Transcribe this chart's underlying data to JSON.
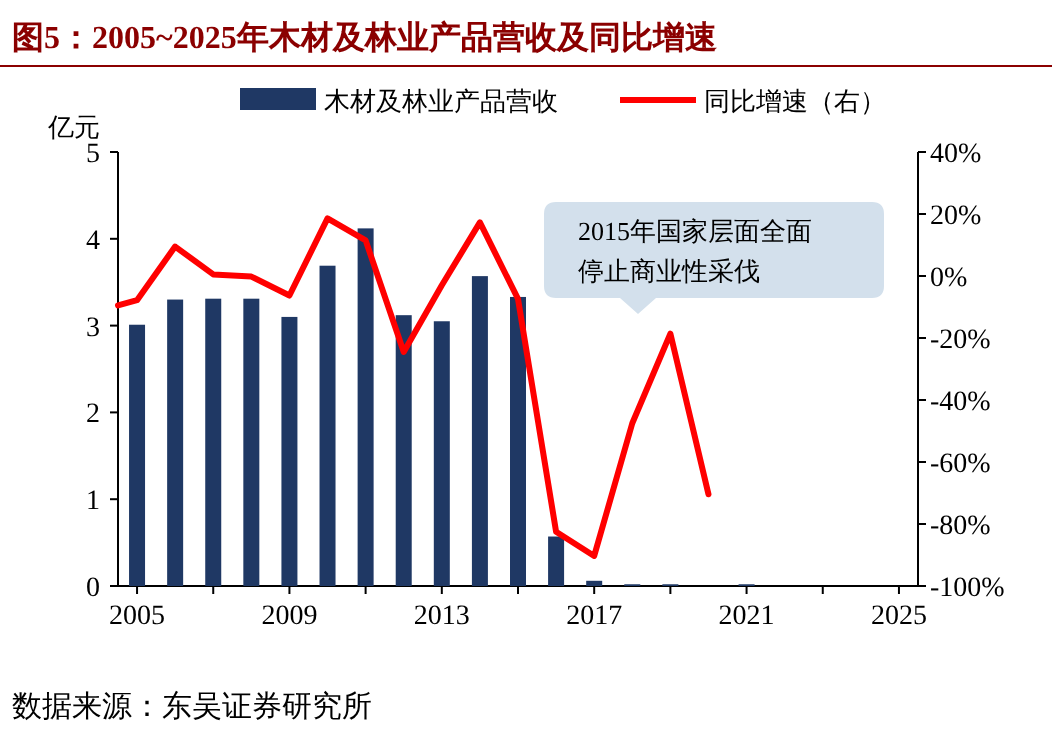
{
  "chart_data": {
    "type": "bar",
    "title": "图5：2005~2025年木材及林业产品营收及同比增速",
    "ylabel": "亿元",
    "x": [
      2005,
      2006,
      2007,
      2008,
      2009,
      2010,
      2011,
      2012,
      2013,
      2014,
      2015,
      2016,
      2017,
      2018,
      2019,
      2021
    ],
    "series": [
      {
        "name": "木材及林业产品营收",
        "color": "#1f3864",
        "values": [
          3.01,
          3.3,
          3.31,
          3.31,
          3.1,
          3.69,
          4.12,
          3.12,
          3.05,
          3.57,
          3.33,
          0.57,
          0.06,
          0.02,
          0.02,
          0.02
        ]
      },
      {
        "name": "同比增速（右）",
        "type": "line",
        "axis": "y2",
        "color": "#ff0000",
        "x": [
          2004.5,
          2005,
          2006,
          2007,
          2008,
          2009,
          2010,
          2011,
          2012,
          2013,
          2014,
          2015,
          2016,
          2017,
          2018,
          2019,
          2020
        ],
        "values": [
          -9.5,
          -7.8,
          9.5,
          0.5,
          -0.2,
          -6.3,
          18.6,
          11.5,
          -24.5,
          -3,
          17.3,
          -7.4,
          -82.5,
          -90.3,
          -47.5,
          -18.6,
          -70.4
        ]
      }
    ],
    "xlim": [
      2004.5,
      2025.5
    ],
    "xticks": [
      2005,
      {
        "value": 2007,
        "label": null
      },
      2009,
      {
        "value": 2011,
        "label": null
      },
      2013,
      {
        "value": 2015,
        "label": null
      },
      2017,
      {
        "value": 2019,
        "label": null
      },
      2021,
      {
        "value": 2023,
        "label": null
      },
      2025
    ],
    "ylim": [
      0,
      5
    ],
    "yticks": [
      0,
      1,
      2,
      3,
      4,
      5
    ],
    "y2lim": [
      -100,
      40
    ],
    "y2ticks": [
      {
        "value": -100,
        "label": "-100%"
      },
      {
        "value": -80,
        "label": "-80%"
      },
      {
        "value": -60,
        "label": "-60%"
      },
      {
        "value": -40,
        "label": "-40%"
      },
      {
        "value": -20,
        "label": "-20%"
      },
      {
        "value": 0,
        "label": "0%"
      },
      {
        "value": 20,
        "label": "20%"
      },
      {
        "value": 40,
        "label": "40%"
      }
    ],
    "legend": "top",
    "annotations": [
      "2015年国家层面全面",
      "停止商业性采伐",
      "数据来源：东吴证券研究所"
    ]
  }
}
